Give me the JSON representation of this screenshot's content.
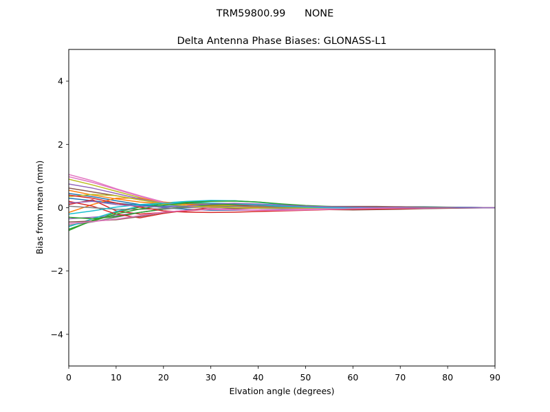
{
  "suptitle": "TRM59800.99      NONE",
  "chart_data": {
    "type": "line",
    "title": "Delta Antenna Phase Biases: GLONASS-L1",
    "xlabel": "Elvation angle (degrees)",
    "ylabel": "Bias from mean (mm)",
    "xlim": [
      0,
      90
    ],
    "ylim": [
      -5,
      5
    ],
    "xticks": [
      0,
      10,
      20,
      30,
      40,
      50,
      60,
      70,
      80,
      90
    ],
    "yticks": [
      -4,
      -2,
      0,
      2,
      4
    ],
    "ytick_labels": [
      "−4",
      "−2",
      "0",
      "2",
      "4"
    ],
    "grid": false,
    "x": [
      0,
      5,
      10,
      15,
      20,
      25,
      30,
      35,
      40,
      45,
      50,
      55,
      60,
      65,
      70,
      75,
      80,
      85,
      90
    ],
    "series": [
      {
        "color": "#1f77b4",
        "values": [
          0.3,
          0.22,
          0.14,
          0.08,
          0.05,
          0.06,
          0.08,
          0.07,
          0.05,
          0.02,
          0.0,
          0.0,
          0.01,
          0.02,
          0.02,
          0.02,
          0.01,
          0.01,
          0.0
        ]
      },
      {
        "color": "#ff7f0e",
        "values": [
          0.55,
          0.4,
          0.28,
          0.18,
          0.12,
          0.12,
          0.13,
          0.12,
          0.09,
          0.05,
          0.02,
          0.0,
          0.0,
          0.0,
          0.01,
          0.01,
          0.01,
          0.0,
          0.0
        ]
      },
      {
        "color": "#2ca02c",
        "values": [
          -0.72,
          -0.4,
          -0.15,
          0.02,
          0.12,
          0.18,
          0.22,
          0.22,
          0.18,
          0.11,
          0.05,
          0.02,
          0.0,
          -0.01,
          -0.01,
          -0.01,
          -0.01,
          0.0,
          0.0
        ]
      },
      {
        "color": "#d62728",
        "values": [
          0.1,
          0.25,
          -0.1,
          -0.2,
          -0.15,
          -0.1,
          -0.05,
          -0.02,
          0.0,
          0.01,
          0.02,
          0.03,
          0.03,
          0.03,
          0.02,
          0.01,
          0.01,
          0.0,
          0.0
        ]
      },
      {
        "color": "#9467bd",
        "values": [
          -0.35,
          -0.3,
          -0.25,
          -0.15,
          -0.05,
          0.02,
          0.06,
          0.06,
          0.04,
          0.01,
          -0.01,
          -0.02,
          -0.02,
          -0.02,
          -0.02,
          -0.01,
          -0.01,
          0.0,
          0.0
        ]
      },
      {
        "color": "#8c564b",
        "values": [
          0.62,
          0.5,
          0.38,
          0.25,
          0.15,
          0.12,
          0.1,
          0.08,
          0.04,
          0.0,
          -0.04,
          -0.06,
          -0.07,
          -0.06,
          -0.05,
          -0.03,
          -0.02,
          -0.01,
          0.0
        ]
      },
      {
        "color": "#e377c2",
        "values": [
          1.05,
          0.85,
          0.6,
          0.38,
          0.18,
          0.1,
          0.06,
          0.04,
          0.02,
          0.01,
          0.01,
          0.02,
          0.03,
          0.03,
          0.03,
          0.02,
          0.01,
          0.0,
          0.0
        ]
      },
      {
        "color": "#7f7f7f",
        "values": [
          -0.55,
          -0.45,
          -0.3,
          -0.15,
          -0.05,
          0.03,
          0.08,
          0.1,
          0.08,
          0.04,
          0.01,
          -0.02,
          -0.03,
          -0.03,
          -0.03,
          -0.02,
          -0.01,
          0.0,
          0.0
        ]
      },
      {
        "color": "#bcbd22",
        "values": [
          0.9,
          0.72,
          0.52,
          0.32,
          0.14,
          0.1,
          0.08,
          0.06,
          0.03,
          0.0,
          -0.02,
          -0.03,
          -0.03,
          -0.02,
          -0.02,
          -0.01,
          -0.01,
          0.0,
          0.0
        ]
      },
      {
        "color": "#17becf",
        "values": [
          -0.6,
          -0.35,
          -0.12,
          0.05,
          0.15,
          0.2,
          0.23,
          0.22,
          0.17,
          0.1,
          0.05,
          0.02,
          0.0,
          -0.01,
          -0.01,
          -0.01,
          0.0,
          0.0,
          0.0
        ]
      },
      {
        "color": "#1f77b4",
        "values": [
          0.45,
          0.35,
          0.22,
          0.1,
          0.0,
          -0.05,
          -0.08,
          -0.08,
          -0.07,
          -0.05,
          -0.03,
          -0.01,
          0.01,
          0.02,
          0.03,
          0.03,
          0.02,
          0.01,
          0.0
        ]
      },
      {
        "color": "#ff7f0e",
        "values": [
          -0.15,
          0.1,
          0.3,
          0.3,
          0.18,
          0.1,
          0.06,
          0.04,
          0.02,
          0.01,
          0.0,
          0.0,
          0.0,
          0.0,
          0.0,
          0.0,
          0.0,
          0.0,
          0.0
        ]
      },
      {
        "color": "#2ca02c",
        "values": [
          -0.3,
          -0.35,
          -0.28,
          -0.15,
          -0.04,
          0.04,
          0.09,
          0.11,
          0.1,
          0.07,
          0.04,
          0.02,
          0.01,
          0.0,
          0.0,
          0.0,
          0.0,
          0.0,
          0.0
        ]
      },
      {
        "color": "#d62728",
        "values": [
          0.2,
          0.05,
          -0.2,
          -0.32,
          -0.18,
          -0.08,
          0.0,
          0.05,
          0.05,
          0.03,
          0.01,
          0.0,
          -0.01,
          -0.01,
          -0.01,
          0.0,
          0.0,
          0.0,
          0.0
        ]
      },
      {
        "color": "#9467bd",
        "values": [
          0.75,
          0.62,
          0.45,
          0.28,
          0.12,
          0.05,
          0.01,
          -0.01,
          -0.02,
          -0.02,
          -0.02,
          -0.01,
          -0.01,
          -0.01,
          -0.01,
          0.0,
          0.0,
          0.0,
          0.0
        ]
      },
      {
        "color": "#8c564b",
        "values": [
          -0.45,
          -0.42,
          -0.38,
          -0.28,
          -0.15,
          -0.08,
          -0.05,
          -0.03,
          -0.01,
          0.01,
          0.03,
          0.04,
          0.04,
          0.04,
          0.03,
          0.02,
          0.01,
          0.0,
          0.0
        ]
      },
      {
        "color": "#e377c2",
        "values": [
          0.98,
          0.8,
          0.58,
          0.36,
          0.16,
          0.05,
          -0.02,
          -0.06,
          -0.07,
          -0.06,
          -0.04,
          -0.03,
          -0.02,
          -0.01,
          -0.01,
          -0.01,
          0.0,
          0.0,
          0.0
        ]
      },
      {
        "color": "#7f7f7f",
        "values": [
          0.05,
          0.0,
          -0.05,
          -0.05,
          -0.03,
          0.0,
          0.03,
          0.04,
          0.04,
          0.03,
          0.02,
          0.01,
          0.0,
          0.0,
          0.0,
          0.0,
          0.0,
          0.0,
          0.0
        ]
      },
      {
        "color": "#bcbd22",
        "values": [
          0.35,
          0.42,
          0.38,
          0.25,
          0.12,
          0.06,
          0.02,
          0.0,
          -0.01,
          -0.01,
          -0.01,
          0.0,
          0.0,
          0.01,
          0.01,
          0.01,
          0.01,
          0.0,
          0.0
        ]
      },
      {
        "color": "#17becf",
        "values": [
          -0.2,
          -0.1,
          0.02,
          0.1,
          0.14,
          0.15,
          0.15,
          0.13,
          0.09,
          0.05,
          0.02,
          0.0,
          -0.01,
          -0.01,
          -0.01,
          -0.01,
          0.0,
          0.0,
          0.0
        ]
      },
      {
        "color": "#d62728",
        "values": [
          0.4,
          0.3,
          0.15,
          0.02,
          -0.1,
          -0.14,
          -0.15,
          -0.14,
          -0.12,
          -0.1,
          -0.08,
          -0.06,
          -0.05,
          -0.04,
          -0.03,
          -0.02,
          -0.01,
          0.0,
          0.0
        ]
      },
      {
        "color": "#2ca02c",
        "values": [
          -0.68,
          -0.42,
          -0.2,
          -0.04,
          0.08,
          0.15,
          0.2,
          0.21,
          0.18,
          0.12,
          0.07,
          0.04,
          0.02,
          0.01,
          0.0,
          0.0,
          0.0,
          0.0,
          0.0
        ]
      },
      {
        "color": "#e377c2",
        "values": [
          -0.5,
          -0.44,
          -0.36,
          -0.25,
          -0.14,
          -0.08,
          -0.06,
          -0.07,
          -0.08,
          -0.08,
          -0.07,
          -0.05,
          -0.03,
          -0.02,
          -0.01,
          -0.01,
          0.0,
          0.0,
          0.0
        ]
      },
      {
        "color": "#9467bd",
        "values": [
          0.15,
          0.2,
          0.1,
          0.05,
          0.02,
          0.05,
          0.12,
          0.14,
          0.12,
          0.08,
          0.05,
          0.03,
          0.02,
          0.01,
          0.01,
          0.0,
          0.0,
          0.0,
          0.0
        ]
      }
    ]
  }
}
